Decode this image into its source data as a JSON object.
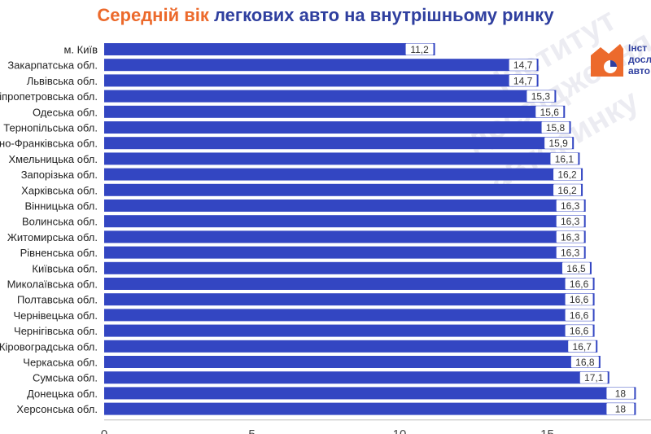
{
  "title": {
    "part1": "Середній вік",
    "part2": "легкових авто на внутрішньому ринку"
  },
  "logo": {
    "line1": "Інст",
    "line2": "досл",
    "line3": "авто"
  },
  "watermark": {
    "line1": "Інститут",
    "line2": "дослідження",
    "line3": "авторинку"
  },
  "colors": {
    "bar": "#3346c2",
    "label_bg": "#ffffff",
    "title_orange": "#ec6a2c",
    "title_blue": "#2f3f9f",
    "accent_orange": "#ec6a2c"
  },
  "chart_data": {
    "type": "bar",
    "orientation": "horizontal",
    "title": "Середній вік легкових авто на внутрішньому ринку",
    "categories": [
      "м. Київ",
      "Закарпатська обл.",
      "Львівська обл.",
      "Дніпропетровська обл.",
      "Одеська обл.",
      "Тернопільська обл.",
      "Івано-Франківська обл.",
      "Хмельницька обл.",
      "Запорізька обл.",
      "Харківська обл.",
      "Вінницька обл.",
      "Волинська обл.",
      "Житомирська обл.",
      "Рівненська обл.",
      "Київська обл.",
      "Миколаївська обл.",
      "Полтавська обл.",
      "Чернівецька обл.",
      "Чернігівська обл.",
      "Кіровоградська обл.",
      "Черкаська обл.",
      "Сумська обл.",
      "Донецька обл.",
      "Херсонська обл."
    ],
    "values": [
      11.2,
      14.7,
      14.7,
      15.3,
      15.6,
      15.8,
      15.9,
      16.1,
      16.2,
      16.2,
      16.3,
      16.3,
      16.3,
      16.3,
      16.5,
      16.6,
      16.6,
      16.6,
      16.6,
      16.7,
      16.8,
      17.1,
      18.0,
      18.0
    ],
    "value_labels": [
      "11,2",
      "14,7",
      "14,7",
      "15,3",
      "15,6",
      "15,8",
      "15,9",
      "16,1",
      "16,2",
      "16,2",
      "16,3",
      "16,3",
      "16,3",
      "16,3",
      "16,5",
      "16,6",
      "16,6",
      "16,6",
      "16,6",
      "16,7",
      "16,8",
      "17,1",
      "18",
      "18"
    ],
    "x_ticks": [
      0,
      5,
      10,
      15
    ],
    "x_tick_labels": [
      "0",
      "5",
      "10",
      "15"
    ],
    "xlim": [
      0,
      18.5
    ],
    "grid": false,
    "legend": "none"
  }
}
